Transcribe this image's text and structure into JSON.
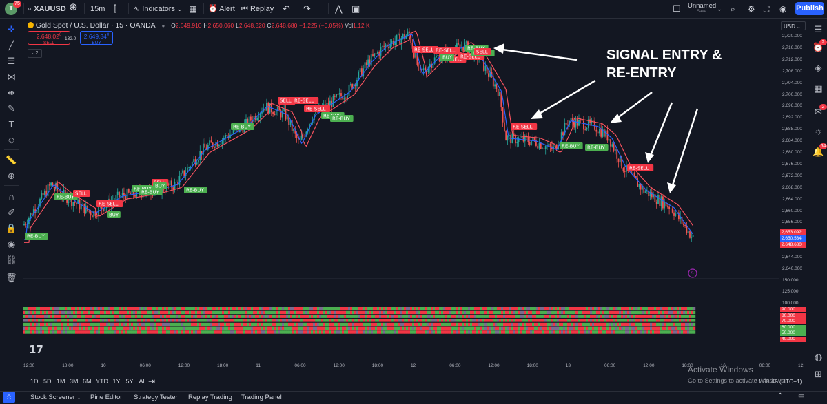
{
  "topbar": {
    "avatar_letter": "T",
    "avatar_badge": "75",
    "symbol": "XAUUSD",
    "timeframe": "15m",
    "indicators_label": "Indicators",
    "alert_label": "Alert",
    "replay_label": "Replay",
    "layout_name": "Unnamed",
    "layout_status": "Save",
    "publish_label": "Publish"
  },
  "legend": {
    "title": "Gold Spot / U.S. Dollar · 15 · OANDA",
    "open_key": "O",
    "open": "2,649.910",
    "high_key": "H",
    "high": "2,650.060",
    "low_key": "L",
    "low": "2,648.320",
    "close_key": "C",
    "close": "2,648.680",
    "change": "−1.225 (−0.05%)",
    "vol_key": "Vol",
    "vol": "1.12 K",
    "sell_price": "2,648.02",
    "sell_sup": "0",
    "sell_label": "SELL",
    "spread": "132.0",
    "buy_price": "2,649.34",
    "buy_sup": "0",
    "buy_label": "BUY",
    "indicator_count": "2"
  },
  "annotation": {
    "line1": "SIGNAL ENTRY &",
    "line2": "RE-ENTRY"
  },
  "price_axis": {
    "currency": "USD",
    "ticks": [
      "2,720.000",
      "2,716.000",
      "2,712.000",
      "2,708.000",
      "2,704.000",
      "2,700.000",
      "2,696.000",
      "2,692.000",
      "2,688.000",
      "2,684.000",
      "2,680.000",
      "2,676.000",
      "2,672.000",
      "2,668.000",
      "2,664.000",
      "2,660.000",
      "2,656.000",
      "2,652.000",
      "2,648.000",
      "2,644.000",
      "2,640.000"
    ],
    "last_red": "2,653.092",
    "last_blue": "2,650.534",
    "last_price": "2,648.680",
    "osc_ticks": [
      "150.000",
      "125.000",
      "100.000"
    ],
    "osc_labels": [
      {
        "text": "90.000",
        "color": "#f23645"
      },
      {
        "text": "80.000",
        "color": "#f23645"
      },
      {
        "text": "70.000",
        "color": "#f23645"
      },
      {
        "text": "60.000",
        "color": "#4caf50"
      },
      {
        "text": "50.000",
        "color": "#4caf50"
      },
      {
        "text": "40.000",
        "color": "#f23645"
      }
    ]
  },
  "time_axis": [
    "12:00",
    "18:00",
    "10",
    "06:00",
    "12:00",
    "18:00",
    "11",
    "06:00",
    "12:00",
    "18:00",
    "12",
    "06:00",
    "12:00",
    "18:00",
    "13",
    "06:00",
    "12:00",
    "18:00",
    "16",
    "06:00",
    "12:"
  ],
  "range_buttons": [
    "1D",
    "5D",
    "1M",
    "3M",
    "6M",
    "YTD",
    "1Y",
    "5Y",
    "All"
  ],
  "clock": "11:58:42 (UTC+1)",
  "windows_watermark": {
    "line1": "Activate Windows",
    "line2": "Go to Settings to activate Windows."
  },
  "bottom_tabs": [
    "Stock Screener",
    "Pine Editor",
    "Strategy Tester",
    "Replay Trading",
    "Trading Panel"
  ],
  "right_badges": [
    "2",
    "2",
    "64"
  ],
  "signals": [
    {
      "label": "RE-BUY",
      "type": "buy"
    },
    {
      "label": "RE-BUY",
      "type": "buy"
    },
    {
      "label": "SELL",
      "type": "sell"
    },
    {
      "label": "RE-SELL",
      "type": "sell"
    },
    {
      "label": "BUY",
      "type": "buy"
    },
    {
      "label": "RE-BUY",
      "type": "buy"
    },
    {
      "label": "SELL",
      "type": "sell"
    },
    {
      "label": "BUY",
      "type": "buy"
    },
    {
      "label": "RE-BUY",
      "type": "buy"
    },
    {
      "label": "RE-BUY",
      "type": "buy"
    },
    {
      "label": "RE-BUY",
      "type": "buy"
    },
    {
      "label": "SELL",
      "type": "sell"
    },
    {
      "label": "RE-SELL",
      "type": "sell"
    },
    {
      "label": "RE-SELL",
      "type": "sell"
    },
    {
      "label": "RE-BUY",
      "type": "buy"
    },
    {
      "label": "RE-BUY",
      "type": "buy"
    },
    {
      "label": "SELL",
      "type": "sell"
    },
    {
      "label": "RE-SELL",
      "type": "sell"
    },
    {
      "label": "RE-SELL",
      "type": "sell"
    },
    {
      "label": "RE-BUY",
      "type": "buy"
    },
    {
      "label": "SELL",
      "type": "sell"
    },
    {
      "label": "RE-SELL",
      "type": "sell"
    },
    {
      "label": "BUY",
      "type": "buy"
    },
    {
      "label": "RE-BUY",
      "type": "buy"
    },
    {
      "label": "SELL",
      "type": "sell"
    },
    {
      "label": "RE-BUY",
      "type": "buy"
    },
    {
      "label": "RE-BUY",
      "type": "buy"
    },
    {
      "label": "RE-SELL",
      "type": "sell"
    },
    {
      "label": "RE-SELL",
      "type": "sell"
    }
  ],
  "colors": {
    "background": "#131722",
    "bull": "#26a69a",
    "bear": "#ef5350",
    "sell_signal": "#f23645",
    "buy_signal": "#4caf50",
    "ema_fast": "#2962ff",
    "ema_slow": "#f7525f",
    "accent": "#2962ff"
  }
}
